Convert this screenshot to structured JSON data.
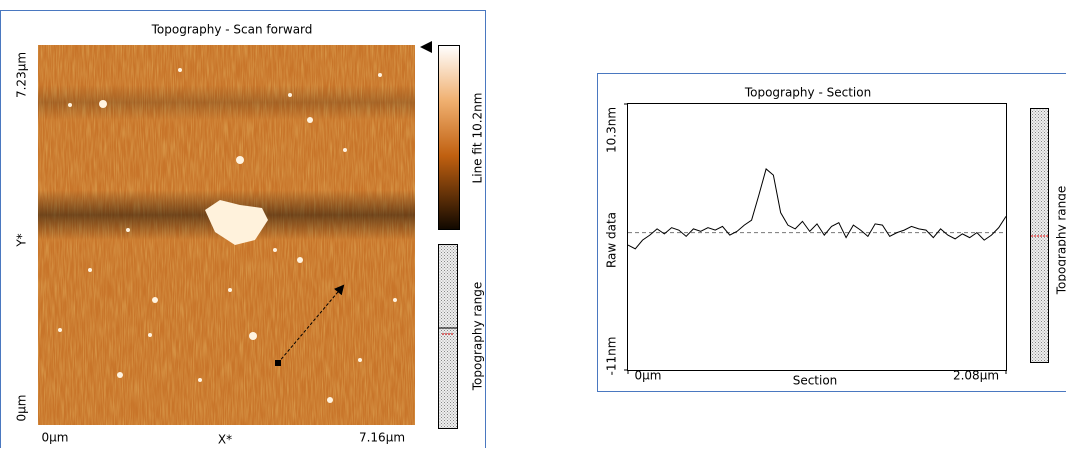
{
  "scan_panel": {
    "title": "Topography - Scan forward",
    "y_labels": [
      "7.23µm",
      "Y*",
      "0µm"
    ],
    "x_labels": [
      "0µm",
      "X*",
      "7.16µm"
    ],
    "colorbar_label": "Line fit 10.2nm",
    "range_label": "Topography range"
  },
  "section_panel": {
    "title": "Topography - Section",
    "y_label": "Raw data",
    "x_label": "Section",
    "range_label": "Topography range",
    "xlim": [
      0,
      2.08
    ],
    "ylim": [
      -11,
      10.3
    ],
    "xticks": [
      {
        "value": 0,
        "label": "0µm"
      },
      {
        "value": 2.08,
        "label": "2.08µm"
      }
    ],
    "yticks": [
      {
        "value": -11,
        "label": "-11nm"
      },
      {
        "value": 10.3,
        "label": "10.3nm"
      }
    ],
    "baseline": 0,
    "x": [
      0,
      0.04,
      0.08,
      0.12,
      0.16,
      0.2,
      0.24,
      0.28,
      0.32,
      0.36,
      0.4,
      0.44,
      0.48,
      0.52,
      0.56,
      0.6,
      0.64,
      0.68,
      0.72,
      0.76,
      0.8,
      0.84,
      0.88,
      0.92,
      0.96,
      1,
      1.04,
      1.08,
      1.12,
      1.16,
      1.2,
      1.24,
      1.28,
      1.32,
      1.36,
      1.4,
      1.44,
      1.48,
      1.52,
      1.56,
      1.6,
      1.64,
      1.68,
      1.72,
      1.76,
      1.8,
      1.84,
      1.88,
      1.92,
      1.96,
      2,
      2.04,
      2.08
    ],
    "values": [
      -1.0,
      -1.3,
      -0.6,
      -0.2,
      0.3,
      -0.1,
      0.4,
      0.2,
      -0.3,
      0.3,
      0.1,
      0.4,
      0.2,
      0.5,
      -0.2,
      0.1,
      0.6,
      1.0,
      3.0,
      5.1,
      4.6,
      1.6,
      0.6,
      0.3,
      0.9,
      0.1,
      0.7,
      -0.2,
      0.5,
      0.8,
      -0.4,
      0.6,
      0.2,
      -0.3,
      0.7,
      0.6,
      -0.3,
      0,
      0.2,
      0.5,
      0.3,
      0.2,
      -0.4,
      0.3,
      -0.2,
      -0.5,
      -0.1,
      -0.4,
      0,
      -0.6,
      -0.2,
      0.4,
      1.3
    ]
  }
}
